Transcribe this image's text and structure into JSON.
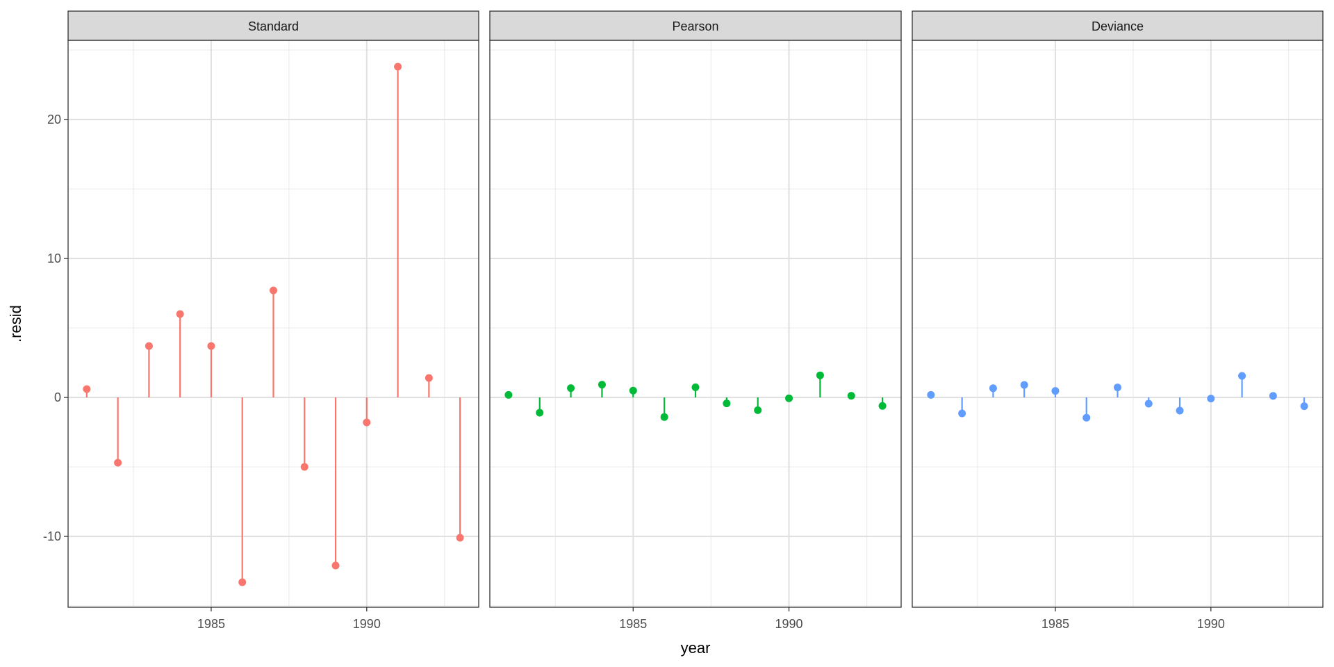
{
  "chart_data": {
    "type": "lollipop-facets",
    "xlabel": "year",
    "ylabel": ".resid",
    "xlim": [
      1980.4,
      1993.6
    ],
    "ylim": [
      -15.1,
      25.7
    ],
    "x_ticks": [
      1985,
      1990
    ],
    "y_ticks": [
      -10,
      0,
      10,
      20
    ],
    "grid": true,
    "x": [
      1981,
      1982,
      1983,
      1984,
      1985,
      1986,
      1987,
      1988,
      1989,
      1990,
      1991,
      1992,
      1993
    ],
    "panels": [
      {
        "name": "Standard",
        "color": "#F8766D",
        "values": [
          0.6,
          -4.7,
          3.7,
          6.0,
          3.7,
          -13.3,
          7.7,
          -5.0,
          -12.1,
          -1.8,
          23.8,
          1.4,
          -10.1
        ]
      },
      {
        "name": "Pearson",
        "color": "#00BA38",
        "values": [
          0.18,
          -1.1,
          0.67,
          0.92,
          0.49,
          -1.41,
          0.73,
          -0.43,
          -0.92,
          -0.06,
          1.59,
          0.12,
          -0.61
        ]
      },
      {
        "name": "Deviance",
        "color": "#619CFF",
        "values": [
          0.18,
          -1.15,
          0.66,
          0.9,
          0.47,
          -1.46,
          0.72,
          -0.45,
          -0.95,
          -0.08,
          1.55,
          0.11,
          -0.63
        ]
      }
    ]
  }
}
